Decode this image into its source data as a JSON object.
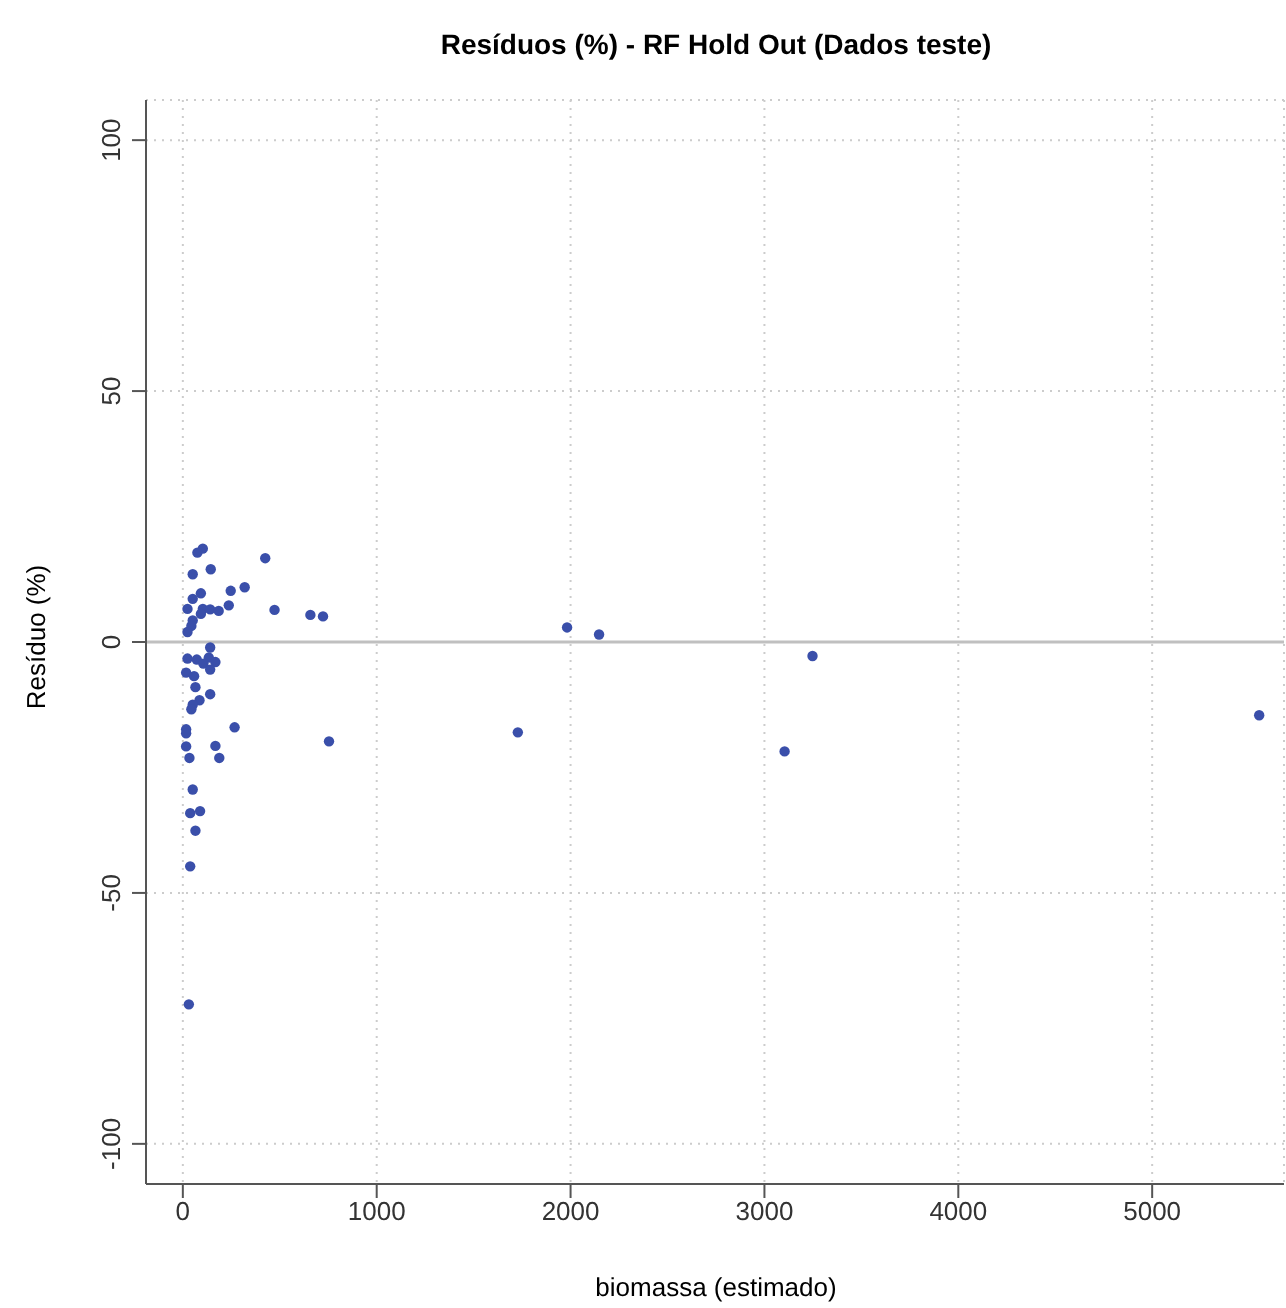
{
  "chart_data": {
    "type": "scatter",
    "title": "Resíduos (%) - RF Hold Out (Dados teste)",
    "xlabel": "biomassa (estimado)",
    "ylabel": "Resíduo (%)",
    "x": [
      103,
      75,
      425,
      51,
      144,
      319,
      247,
      93,
      51,
      24,
      103,
      141,
      185,
      237,
      473,
      93,
      658,
      723,
      51,
      44,
      24,
      141,
      24,
      72,
      134,
      168,
      106,
      141,
      17,
      58,
      65,
      141,
      86,
      51,
      44,
      267,
      17,
      17,
      754,
      168,
      17,
      188,
      34,
      51,
      38,
      89,
      65,
      38,
      31,
      1728,
      1982,
      2147,
      3104,
      3248,
      5552
    ],
    "series": [
      {
        "color": "#3a4faa",
        "values": [
          18.6,
          17.8,
          16.7,
          13.5,
          14.5,
          10.9,
          10.2,
          9.7,
          8.6,
          6.6,
          6.6,
          6.5,
          6.2,
          7.3,
          6.4,
          5.6,
          5.4,
          5.1,
          4.3,
          3.2,
          2.0,
          -1.1,
          -3.3,
          -3.5,
          -3.1,
          -4.0,
          -4.3,
          -5.5,
          -6.1,
          -6.8,
          -9.0,
          -10.4,
          -11.6,
          -12.5,
          -13.4,
          -17.0,
          -17.4,
          -18.2,
          -19.8,
          -20.7,
          -20.8,
          -23.1,
          -23.1,
          -29.4,
          -34.1,
          -33.7,
          -37.6,
          -44.7,
          -72.2,
          -18.0,
          2.9,
          1.5,
          -21.8,
          -2.8,
          -14.6
        ]
      }
    ],
    "xlim": [
      -190,
      5680
    ],
    "ylim": [
      -108,
      108
    ],
    "xticks": [
      0,
      1000,
      2000,
      3000,
      4000,
      5000
    ],
    "yticks": [
      -100,
      -50,
      0,
      50,
      100
    ],
    "grid": true,
    "marker": "circle",
    "legend": false,
    "ref_lines": [
      {
        "axis": "y",
        "value": 0,
        "color": "#c0c0c0"
      }
    ]
  }
}
